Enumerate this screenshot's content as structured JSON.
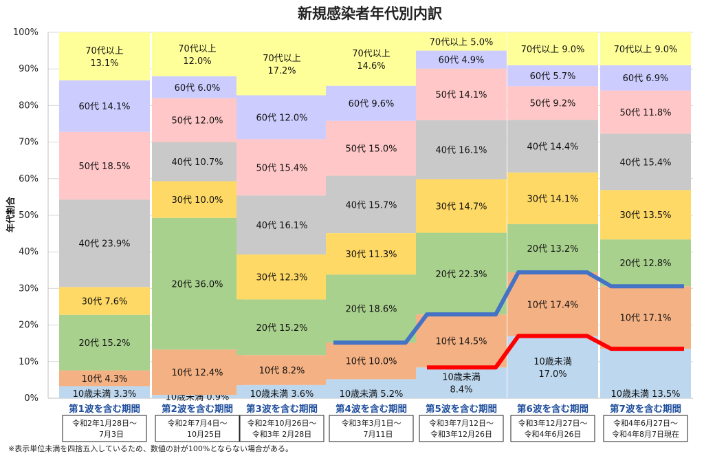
{
  "chart_data": {
    "type": "bar",
    "stacked": true,
    "normalized": true,
    "title": "新規感染者年代別内訳",
    "ylabel": "年代割合",
    "ylim": [
      0,
      100
    ],
    "y_ticks": [
      "0%",
      "10%",
      "20%",
      "30%",
      "40%",
      "50%",
      "60%",
      "70%",
      "80%",
      "90%",
      "100%"
    ],
    "grid": true,
    "categories": [
      "第1波を含む期間",
      "第2波を含む期間",
      "第3波を含む期間",
      "第4波を含む期間",
      "第5波を含む期間",
      "第6波を含む期間",
      "第7波を含む期間"
    ],
    "periods": [
      [
        "令和2年1月28日～",
        "7月3日"
      ],
      [
        "令和2年7月4日～",
        "10月25日"
      ],
      [
        "令和2年10月26日～",
        "令和3年 2月28日"
      ],
      [
        "令和3年3月1日～",
        "7月11日"
      ],
      [
        "令和3年7月12日～",
        "令和3年12月26日"
      ],
      [
        "令和3年12月27日～",
        "令和4年6月26日"
      ],
      [
        "令和4年6月27日～",
        "令和4年8月7日現在"
      ]
    ],
    "series": [
      {
        "name": "10歳未満",
        "color": "#bdd7ee",
        "values": [
          3.3,
          0.9,
          3.6,
          5.2,
          8.4,
          17.0,
          13.5
        ]
      },
      {
        "name": "10代",
        "color": "#f4b183",
        "values": [
          4.3,
          12.4,
          8.2,
          10.0,
          14.5,
          17.4,
          17.1
        ]
      },
      {
        "name": "20代",
        "color": "#a9d18e",
        "values": [
          15.2,
          36.0,
          15.2,
          18.6,
          22.3,
          13.2,
          12.8
        ]
      },
      {
        "name": "30代",
        "color": "#ffd966",
        "values": [
          7.6,
          10.0,
          12.3,
          11.3,
          14.7,
          14.1,
          13.5
        ]
      },
      {
        "name": "40代",
        "color": "#c9c9c9",
        "values": [
          23.9,
          10.7,
          16.1,
          15.7,
          16.1,
          14.4,
          15.4
        ]
      },
      {
        "name": "50代",
        "color": "#ffc7c7",
        "values": [
          18.5,
          12.0,
          15.4,
          15.0,
          14.1,
          9.2,
          11.8
        ]
      },
      {
        "name": "60代",
        "color": "#ccccff",
        "values": [
          14.1,
          6.0,
          12.0,
          9.6,
          4.9,
          5.7,
          6.9
        ]
      },
      {
        "name": "70代以上",
        "color": "#ffff99",
        "values": [
          13.1,
          12.0,
          17.2,
          14.6,
          5.0,
          9.0,
          9.0
        ]
      }
    ],
    "segment_labels": [
      [
        "10歳未満 3.3%",
        "10歳未満 0.9%",
        "10歳未満 3.6%",
        "10歳未満 5.2%",
        "10歳未満",
        "10歳未満",
        "10歳未満 13.5%"
      ],
      [
        "10代 4.3%",
        "10代 12.4%",
        "10代 8.2%",
        "10代 10.0%",
        "10代 14.5%",
        "10代 17.4%",
        "10代 17.1%"
      ],
      [
        "20代 15.2%",
        "20代 36.0%",
        "20代 15.2%",
        "20代 18.6%",
        "20代 22.3%",
        "20代 13.2%",
        "20代 12.8%"
      ],
      [
        "30代 7.6%",
        "30代 10.0%",
        "30代 12.3%",
        "30代 11.3%",
        "30代 14.7%",
        "30代 14.1%",
        "30代 13.5%"
      ],
      [
        "40代 23.9%",
        "40代 10.7%",
        "40代 16.1%",
        "40代 15.7%",
        "40代 16.1%",
        "40代 14.4%",
        "40代 15.4%"
      ],
      [
        "50代 18.5%",
        "50代 12.0%",
        "50代 15.4%",
        "50代 15.0%",
        "50代 14.1%",
        "50代 9.2%",
        "50代 11.8%"
      ],
      [
        "60代 14.1%",
        "60代 6.0%",
        "60代 12.0%",
        "60代 9.6%",
        "60代 4.9%",
        "60代 5.7%",
        "60代 6.9%"
      ],
      [
        "70代以上",
        "70代以上",
        "70代以上",
        "70代以上",
        "70代以上 5.0%",
        "70代以上 9.0%",
        "70代以上 9.0%"
      ]
    ],
    "segment_sublabels": [
      [
        "",
        "",
        "",
        "",
        "8.4%",
        "17.0%",
        ""
      ],
      [
        "",
        "",
        "",
        "",
        "",
        "",
        ""
      ],
      [
        "",
        "",
        "",
        "",
        "",
        "",
        ""
      ],
      [
        "",
        "",
        "",
        "",
        "",
        "",
        ""
      ],
      [
        "",
        "",
        "",
        "",
        "",
        "",
        ""
      ],
      [
        "",
        "",
        "",
        "",
        "",
        "",
        ""
      ],
      [
        "",
        "",
        "",
        "",
        "",
        "",
        ""
      ],
      [
        "13.1%",
        "12.0%",
        "17.2%",
        "14.6%",
        "",
        "",
        ""
      ]
    ],
    "overlay_lines": [
      {
        "color": "#4472c4",
        "categories": [
          3,
          4,
          5,
          6
        ],
        "values": [
          15.2,
          22.9,
          34.4,
          30.6
        ]
      },
      {
        "color": "#ff0000",
        "categories": [
          4,
          5,
          6
        ],
        "values": [
          8.4,
          17.0,
          13.5
        ]
      }
    ],
    "footnote": "※表示単位未満を四捨五入しているため、数値の計が100%とならない場合がある。"
  }
}
